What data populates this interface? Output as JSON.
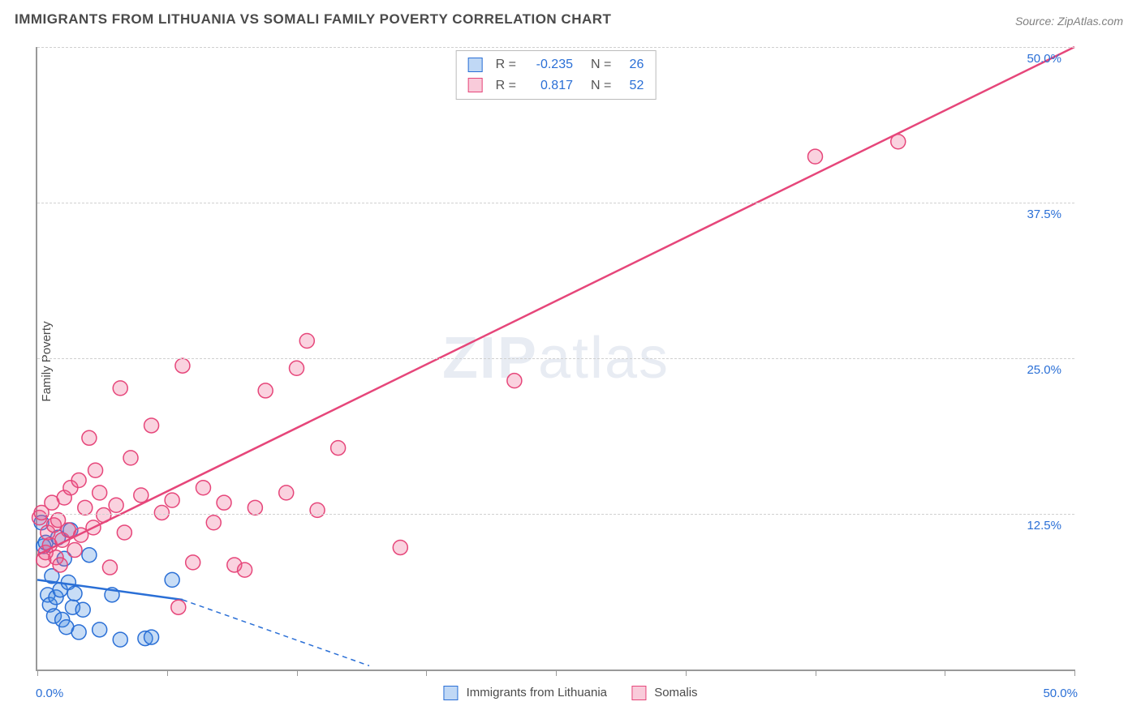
{
  "title": "IMMIGRANTS FROM LITHUANIA VS SOMALI FAMILY POVERTY CORRELATION CHART",
  "source": "Source: ZipAtlas.com",
  "ylabel": "Family Poverty",
  "watermark": {
    "bold": "ZIP",
    "rest": "atlas"
  },
  "chart": {
    "type": "scatter",
    "xlim": [
      0,
      50
    ],
    "ylim": [
      0,
      50
    ],
    "ytick_step": 12.5,
    "ytick_labels": [
      "12.5%",
      "25.0%",
      "37.5%",
      "50.0%"
    ],
    "xtick_positions": [
      0,
      6.25,
      12.5,
      18.75,
      25,
      31.25,
      37.5,
      43.75,
      50
    ],
    "xrange_labels": [
      "0.0%",
      "50.0%"
    ],
    "grid_color": "#d0d0d0",
    "axis_color": "#999999",
    "background_color": "#ffffff",
    "tick_label_color": "#2a6fd6",
    "tick_label_fontsize": 15,
    "title_fontsize": 17,
    "title_color": "#4a4a4a",
    "marker_radius": 9,
    "marker_stroke_width": 1.5,
    "marker_fill_opacity": 0.25,
    "line_width": 2.5,
    "dash_pattern": "6,5"
  },
  "series": [
    {
      "name": "Immigrants from Lithuania",
      "color": "#4a90e2",
      "fill": "rgba(74,144,226,0.30)",
      "stroke": "#2a6fd6",
      "R": "-0.235",
      "N": "26",
      "regression": {
        "x1": 0,
        "y1": 7.2,
        "x2": 7,
        "y2": 5.6,
        "dash_x2": 16,
        "dash_y2": 0.3
      },
      "points": [
        [
          0.2,
          11.8
        ],
        [
          0.3,
          9.9
        ],
        [
          0.4,
          10.2
        ],
        [
          0.5,
          6.0
        ],
        [
          0.6,
          5.2
        ],
        [
          0.7,
          7.5
        ],
        [
          0.8,
          4.3
        ],
        [
          0.9,
          5.8
        ],
        [
          1.0,
          10.6
        ],
        [
          1.1,
          6.4
        ],
        [
          1.2,
          4.0
        ],
        [
          1.3,
          8.9
        ],
        [
          1.4,
          3.4
        ],
        [
          1.5,
          7.0
        ],
        [
          1.7,
          5.0
        ],
        [
          1.8,
          6.1
        ],
        [
          2.0,
          3.0
        ],
        [
          2.2,
          4.8
        ],
        [
          2.5,
          9.2
        ],
        [
          3.0,
          3.2
        ],
        [
          3.6,
          6.0
        ],
        [
          4.0,
          2.4
        ],
        [
          5.2,
          2.5
        ],
        [
          5.5,
          2.6
        ],
        [
          6.5,
          7.2
        ],
        [
          1.6,
          11.2
        ]
      ]
    },
    {
      "name": "Somalis",
      "color": "#ec5e8c",
      "fill": "rgba(236,94,140,0.28)",
      "stroke": "#e6467a",
      "R": "0.817",
      "N": "52",
      "regression": {
        "x1": 0,
        "y1": 9.2,
        "x2": 50,
        "y2": 50
      },
      "points": [
        [
          0.1,
          12.2
        ],
        [
          0.2,
          12.6
        ],
        [
          0.3,
          8.8
        ],
        [
          0.4,
          9.4
        ],
        [
          0.5,
          11.0
        ],
        [
          0.6,
          10.0
        ],
        [
          0.7,
          13.4
        ],
        [
          0.8,
          11.6
        ],
        [
          0.9,
          9.0
        ],
        [
          1.0,
          12.0
        ],
        [
          1.1,
          8.4
        ],
        [
          1.2,
          10.4
        ],
        [
          1.3,
          13.8
        ],
        [
          1.5,
          11.2
        ],
        [
          1.6,
          14.6
        ],
        [
          1.8,
          9.6
        ],
        [
          2.0,
          15.2
        ],
        [
          2.1,
          10.8
        ],
        [
          2.3,
          13.0
        ],
        [
          2.5,
          18.6
        ],
        [
          2.7,
          11.4
        ],
        [
          2.8,
          16.0
        ],
        [
          3.0,
          14.2
        ],
        [
          3.2,
          12.4
        ],
        [
          3.5,
          8.2
        ],
        [
          3.8,
          13.2
        ],
        [
          4.0,
          22.6
        ],
        [
          4.2,
          11.0
        ],
        [
          4.5,
          17.0
        ],
        [
          5.0,
          14.0
        ],
        [
          5.5,
          19.6
        ],
        [
          6.0,
          12.6
        ],
        [
          6.5,
          13.6
        ],
        [
          7.0,
          24.4
        ],
        [
          7.5,
          8.6
        ],
        [
          8.0,
          14.6
        ],
        [
          8.5,
          11.8
        ],
        [
          9.0,
          13.4
        ],
        [
          9.5,
          8.4
        ],
        [
          10.5,
          13.0
        ],
        [
          11.0,
          22.4
        ],
        [
          12.0,
          14.2
        ],
        [
          12.5,
          24.2
        ],
        [
          13.0,
          26.4
        ],
        [
          13.5,
          12.8
        ],
        [
          14.5,
          17.8
        ],
        [
          10.0,
          8.0
        ],
        [
          17.5,
          9.8
        ],
        [
          23.0,
          23.2
        ],
        [
          37.5,
          41.2
        ],
        [
          41.5,
          42.4
        ],
        [
          6.8,
          5.0
        ]
      ]
    }
  ],
  "bottom_legend": [
    {
      "label": "Immigrants from Lithuania",
      "fill": "rgba(74,144,226,0.35)",
      "border": "#2a6fd6"
    },
    {
      "label": "Somalis",
      "fill": "rgba(236,94,140,0.32)",
      "border": "#e6467a"
    }
  ]
}
